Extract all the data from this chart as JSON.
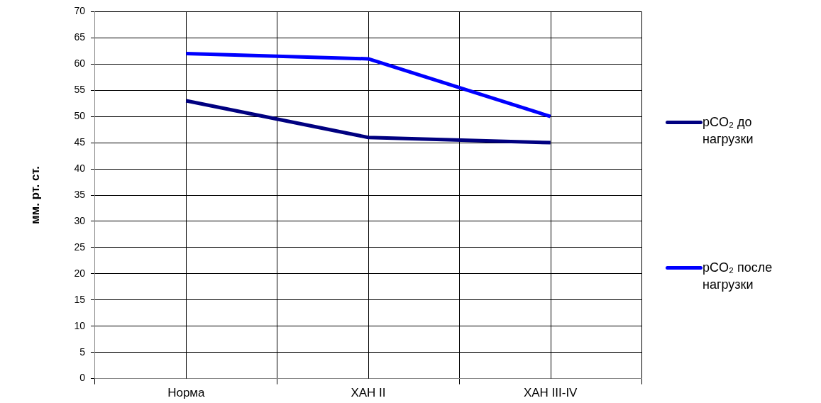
{
  "chart_data": {
    "type": "line",
    "ylabel": "мм. рт. ст.",
    "categories": [
      "Норма",
      "ХАН II",
      "ХАН III-IV"
    ],
    "series": [
      {
        "name": "pCO₂ до нагрузки",
        "color": "#000080",
        "values": [
          53,
          46,
          45
        ]
      },
      {
        "name": "pCO₂ после нагрузки",
        "color": "#0000ff",
        "values": [
          62,
          61,
          50
        ]
      }
    ],
    "ylim": [
      0,
      70
    ],
    "yticks": [
      0,
      5,
      10,
      15,
      20,
      25,
      30,
      35,
      40,
      45,
      50,
      55,
      60,
      65,
      70
    ],
    "grid": true,
    "legend": "right",
    "marker": "none"
  }
}
